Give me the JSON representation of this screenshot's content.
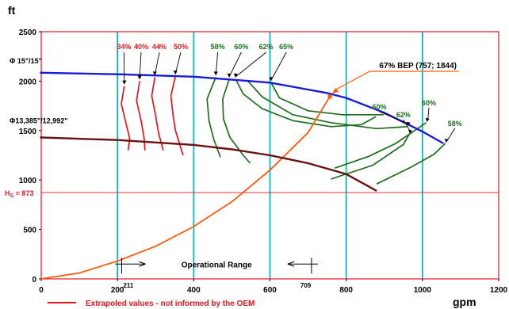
{
  "chart_data": {
    "type": "line",
    "x_unit": "gpm",
    "y_unit": "ft",
    "xlim": [
      0,
      1200
    ],
    "ylim": [
      0,
      2500
    ],
    "x_ticks": [
      0,
      200,
      400,
      600,
      800,
      1000,
      1200
    ],
    "y_ticks": [
      0,
      500,
      1000,
      1500,
      2000,
      2500
    ],
    "head_curves": [
      {
        "name": "Φ 15\"/15\"",
        "color": "#1a1adc",
        "points": [
          [
            0,
            2085
          ],
          [
            200,
            2070
          ],
          [
            400,
            2045
          ],
          [
            600,
            1985
          ],
          [
            750,
            1880
          ],
          [
            800,
            1830
          ],
          [
            900,
            1680
          ],
          [
            1000,
            1490
          ],
          [
            1055,
            1370
          ]
        ]
      },
      {
        "name": "Φ13,385\"/12,992\"",
        "color": "#6b1010",
        "points": [
          [
            0,
            1430
          ],
          [
            200,
            1405
          ],
          [
            400,
            1355
          ],
          [
            500,
            1310
          ],
          [
            600,
            1250
          ],
          [
            700,
            1170
          ],
          [
            800,
            1060
          ],
          [
            880,
            890
          ]
        ]
      }
    ],
    "system_curve": {
      "color": "#ff5a0a",
      "points": [
        [
          0,
          0
        ],
        [
          100,
          60
        ],
        [
          200,
          180
        ],
        [
          300,
          330
        ],
        [
          400,
          530
        ],
        [
          500,
          780
        ],
        [
          600,
          1100
        ],
        [
          700,
          1480
        ],
        [
          757,
          1844
        ]
      ]
    },
    "bep": {
      "label": "67% BEP (757; 1844)",
      "x": 757,
      "y": 1844
    },
    "operational_range": {
      "label": "Operational Range",
      "min": 211,
      "max": 709,
      "min_label": "211",
      "max_label": "709"
    },
    "operational_line": {
      "label": "H",
      "subscript": "S",
      "value_text": " = 873",
      "value": 873
    },
    "efficiency_labels_red": [
      {
        "text": "34%",
        "x": 217,
        "arrow_x": 215,
        "points": [
          [
            218,
            1950
          ],
          [
            210,
            1770
          ],
          [
            222,
            1580
          ],
          [
            232,
            1420
          ],
          [
            228,
            1300
          ]
        ]
      },
      {
        "text": "40%",
        "x": 262,
        "arrow_x": 258,
        "points": [
          [
            258,
            2000
          ],
          [
            250,
            1800
          ],
          [
            262,
            1600
          ],
          [
            270,
            1420
          ],
          [
            272,
            1300
          ]
        ]
      },
      {
        "text": "44%",
        "x": 310,
        "arrow_x": 298,
        "points": [
          [
            298,
            2040
          ],
          [
            290,
            1850
          ],
          [
            300,
            1650
          ],
          [
            308,
            1470
          ],
          [
            320,
            1300
          ]
        ]
      },
      {
        "text": "50%",
        "x": 366,
        "arrow_x": 352,
        "points": [
          [
            352,
            2050
          ],
          [
            340,
            1850
          ],
          [
            346,
            1650
          ],
          [
            352,
            1500
          ],
          [
            372,
            1250
          ]
        ]
      }
    ],
    "efficiency_labels_green": [
      {
        "text": "58%",
        "x": 463,
        "arrow_x": 458,
        "points": [
          [
            458,
            2040
          ],
          [
            435,
            1820
          ],
          [
            440,
            1600
          ],
          [
            452,
            1420
          ],
          [
            470,
            1230
          ]
        ]
      },
      {
        "text": "60%",
        "x": 525,
        "arrow_x": 493,
        "points": [
          [
            493,
            2020
          ],
          [
            476,
            1820
          ],
          [
            478,
            1620
          ],
          [
            495,
            1430
          ],
          [
            530,
            1250
          ],
          [
            548,
            1170
          ]
        ]
      },
      {
        "text": "62%",
        "x": 590,
        "arrow_x": 510,
        "points": [
          [
            510,
            2020
          ],
          [
            530,
            1870
          ],
          [
            580,
            1720
          ],
          [
            660,
            1600
          ],
          [
            760,
            1540
          ],
          [
            840,
            1560
          ],
          [
            878,
            1640
          ]
        ]
      },
      {
        "text": "65%",
        "x": 643,
        "arrow_x": 603,
        "points": [
          [
            603,
            1985
          ],
          [
            625,
            1830
          ],
          [
            700,
            1700
          ],
          [
            790,
            1660
          ],
          [
            860,
            1660
          ],
          [
            898,
            1660
          ]
        ]
      },
      {
        "text": "60%",
        "x": 887,
        "arrow_x": 893,
        "points": [
          [
            540,
            2010
          ],
          [
            580,
            1840
          ],
          [
            660,
            1660
          ],
          [
            760,
            1580
          ],
          [
            880,
            1520
          ],
          [
            960,
            1540
          ]
        ]
      },
      {
        "text": "62%",
        "x": 950,
        "arrow_x": 945,
        "points": [
          [
            760,
            1010
          ],
          [
            870,
            1150
          ],
          [
            950,
            1360
          ],
          [
            965,
            1460
          ]
        ]
      },
      {
        "text": "60%",
        "x": 1017,
        "arrow_x": 1020,
        "points": [
          [
            770,
            1120
          ],
          [
            860,
            1240
          ],
          [
            930,
            1370
          ],
          [
            1010,
            1580
          ]
        ]
      },
      {
        "text": "58%",
        "x": 1085,
        "arrow_x": 1060,
        "points": [
          [
            880,
            960
          ],
          [
            970,
            1130
          ],
          [
            1030,
            1260
          ],
          [
            1060,
            1370
          ]
        ]
      }
    ],
    "legend": {
      "text": "Extrapoled values - not informed by the OEM",
      "color": "#e8141e"
    },
    "colors": {
      "grid_vertical": "#18b4b4",
      "frame": "#e8141e",
      "red": "#e8141e",
      "green": "#1c6e1c",
      "orange": "#ff5a0a"
    }
  }
}
